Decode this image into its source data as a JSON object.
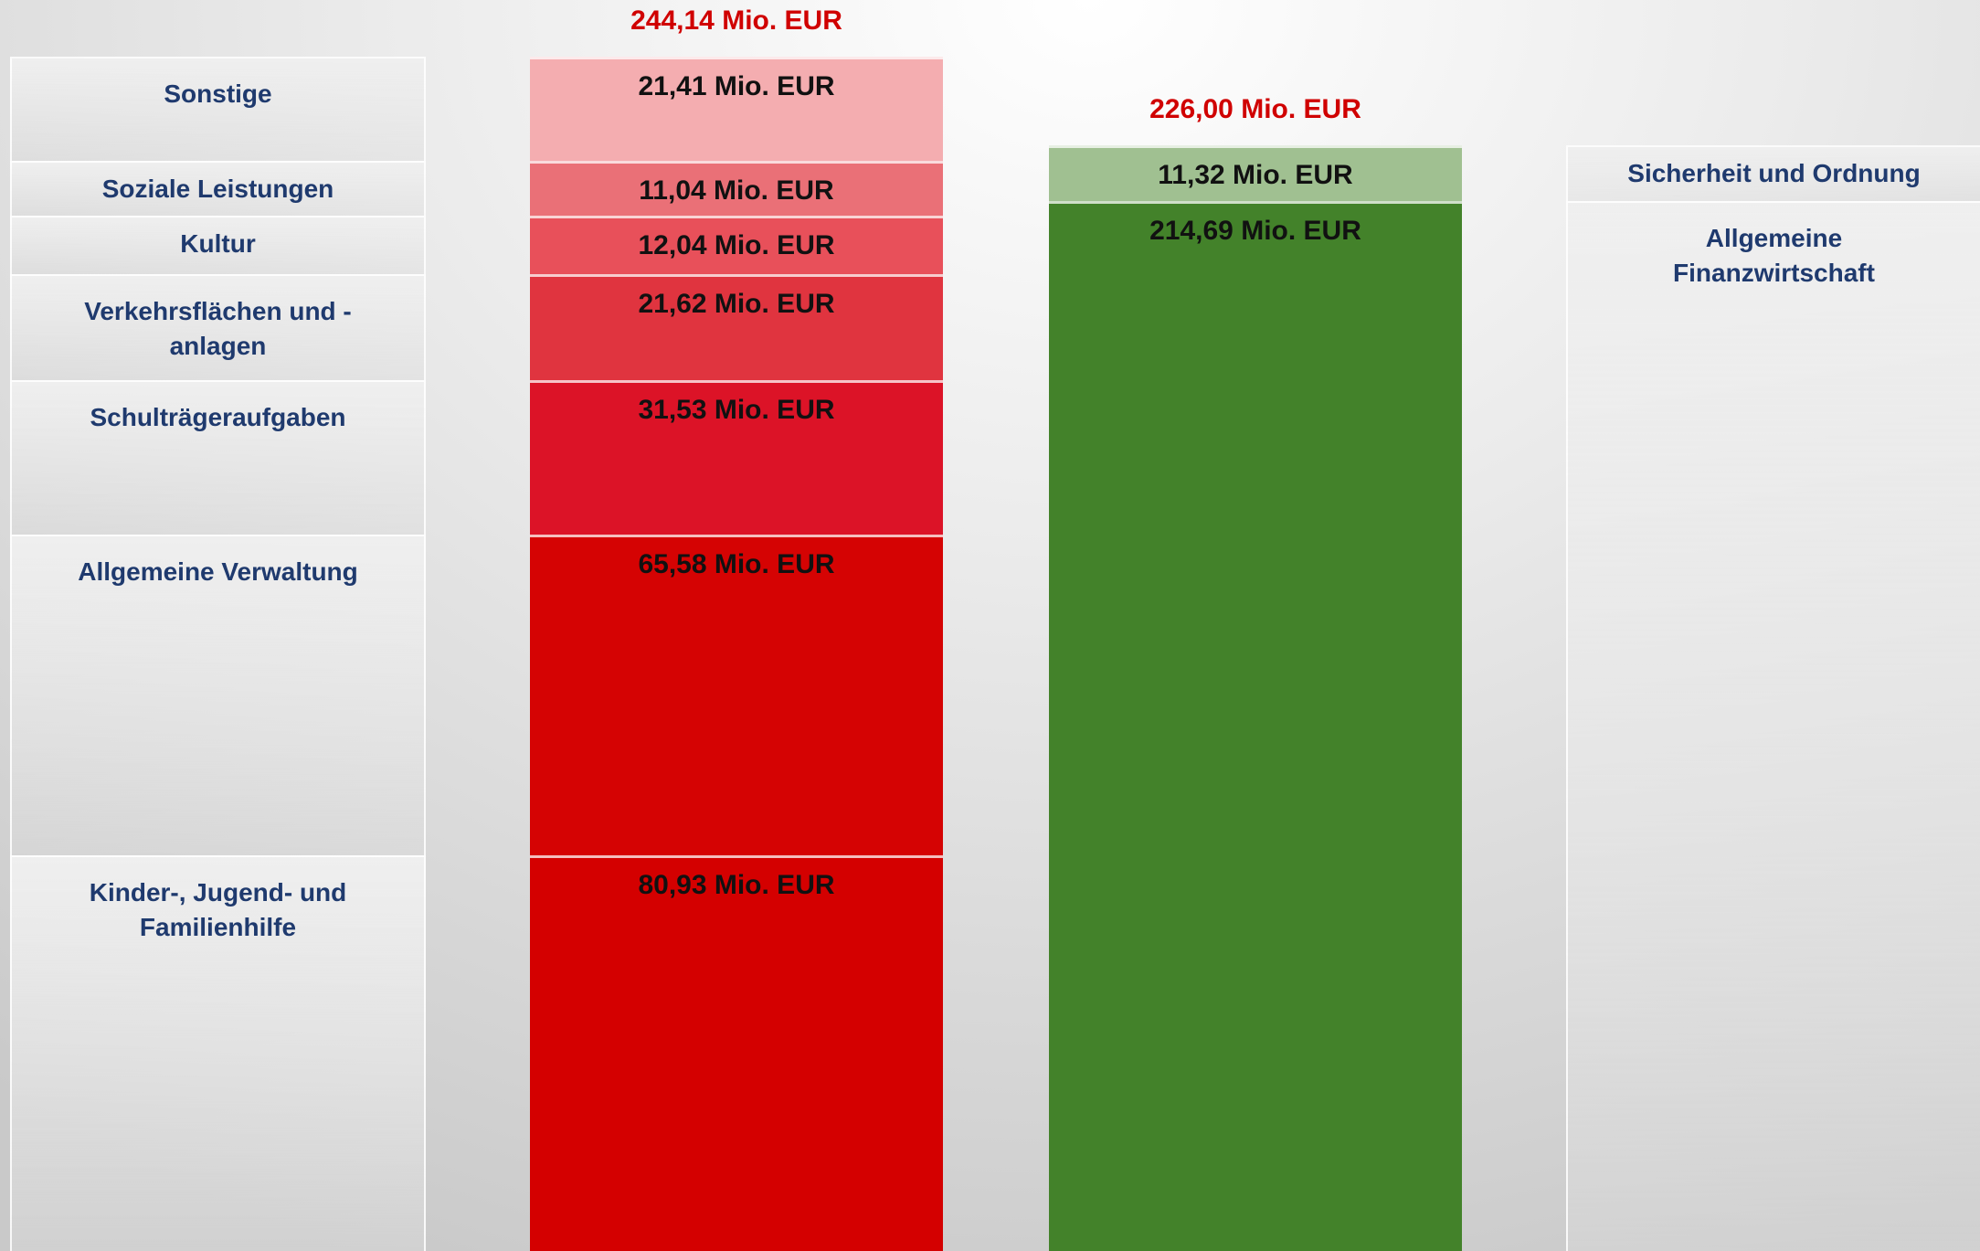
{
  "chart_data": {
    "type": "stacked_column",
    "columns": [
      {
        "side": "left",
        "total": 244.14,
        "total_label": "244,14 Mio. EUR",
        "total_color": "#d00000",
        "segments": {
          "names": [
            "Kinder-, Jugend- und Familienhilfe",
            "Allgemeine Verwaltung",
            "Schulträgeraufgaben",
            "Verkehrsflächen und -anlagen",
            "Kultur",
            "Soziale Leistungen",
            "Sonstige"
          ],
          "values": [
            80.93,
            65.58,
            31.53,
            21.62,
            12.04,
            11.04,
            21.41
          ],
          "value_labels": [
            "80,93 Mio. EUR",
            "65,58 Mio. EUR",
            "31,53 Mio. EUR",
            "21,62 Mio. EUR",
            "12,04 Mio. EUR",
            "11,04 Mio. EUR",
            "21,41 Mio. EUR"
          ],
          "colors": [
            "#d40000",
            "#d50303",
            "#dc1327",
            "#e0343f",
            "#e8505a",
            "#ea7077",
            "#f4adb0"
          ]
        }
      },
      {
        "side": "right",
        "total": 226.0,
        "total_label": "226,00 Mio. EUR",
        "total_color": "#d00000",
        "segments": {
          "names": [
            "Allgemeine Finanzwirtschaft",
            "Sicherheit und Ordnung"
          ],
          "values": [
            214.69,
            11.32
          ],
          "value_labels": [
            "214,69 Mio. EUR",
            "11,32 Mio. EUR"
          ],
          "colors": [
            "#43822a",
            "#a0c091"
          ]
        }
      }
    ]
  }
}
